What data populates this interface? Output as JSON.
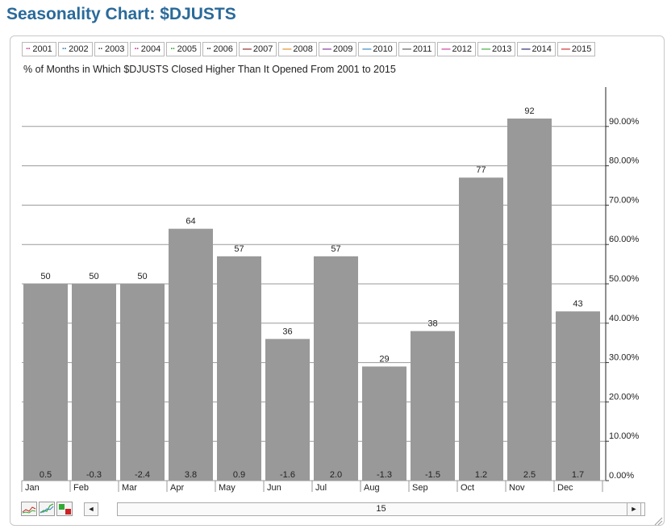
{
  "page": {
    "title": "Seasonality Chart: $DJUSTS"
  },
  "legend": [
    {
      "label": "2001",
      "color": "#cc3399",
      "mark": "··"
    },
    {
      "label": "2002",
      "color": "#2a7fbf",
      "mark": "··"
    },
    {
      "label": "2003",
      "color": "#555555",
      "mark": "··"
    },
    {
      "label": "2004",
      "color": "#cc3399",
      "mark": "··"
    },
    {
      "label": "2005",
      "color": "#33aa33",
      "mark": "··"
    },
    {
      "label": "2006",
      "color": "#333333",
      "mark": "··"
    },
    {
      "label": "2007",
      "color": "#8b1a1a",
      "mark": "—"
    },
    {
      "label": "2008",
      "color": "#e08a1e",
      "mark": "—"
    },
    {
      "label": "2009",
      "color": "#7a2a9a",
      "mark": "—"
    },
    {
      "label": "2010",
      "color": "#2a7fbf",
      "mark": "—"
    },
    {
      "label": "2011",
      "color": "#555555",
      "mark": "—"
    },
    {
      "label": "2012",
      "color": "#cc3399",
      "mark": "—"
    },
    {
      "label": "2013",
      "color": "#33aa33",
      "mark": "—"
    },
    {
      "label": "2014",
      "color": "#1a1a6a",
      "mark": "—"
    },
    {
      "label": "2015",
      "color": "#cc2222",
      "mark": "—"
    }
  ],
  "chart_data": {
    "type": "bar",
    "title": "% of Months in Which $DJUSTS Closed Higher Than It Opened From 2001 to 2015",
    "categories": [
      "Jan",
      "Feb",
      "Mar",
      "Apr",
      "May",
      "Jun",
      "Jul",
      "Aug",
      "Sep",
      "Oct",
      "Nov",
      "Dec"
    ],
    "values": [
      50,
      50,
      50,
      64,
      57,
      36,
      57,
      29,
      38,
      77,
      92,
      43
    ],
    "avg_returns": [
      "0.5",
      "-0.3",
      "-2.4",
      "3.8",
      "0.9",
      "-1.6",
      "2.0",
      "-1.3",
      "-1.5",
      "1.2",
      "2.5",
      "1.7"
    ],
    "yticks": [
      "0.00%",
      "10.00%",
      "20.00%",
      "30.00%",
      "40.00%",
      "50.00%",
      "60.00%",
      "70.00%",
      "80.00%",
      "90.00%"
    ],
    "ylim": [
      0,
      100
    ],
    "y_axis_side": "right",
    "bar_color": "#999999",
    "grid": true
  },
  "scroll": {
    "value": "15",
    "left_arrow": "◄",
    "right_arrow": "►"
  }
}
